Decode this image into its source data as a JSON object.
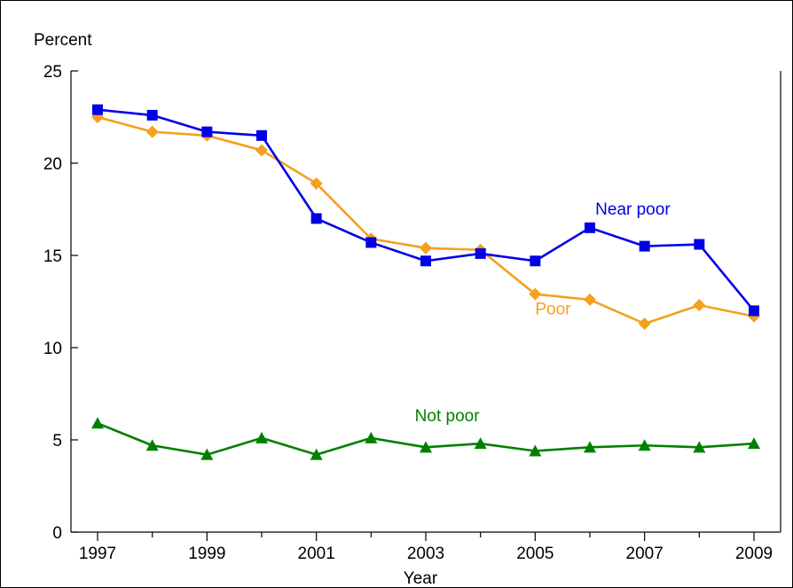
{
  "chart_data": {
    "type": "line",
    "ylabel": "Percent",
    "xlabel": "Year",
    "ylim": [
      0,
      25
    ],
    "xlim": [
      1997,
      2009
    ],
    "yticks": [
      0,
      5,
      10,
      15,
      20,
      25
    ],
    "xticks": [
      1997,
      1999,
      2001,
      2003,
      2005,
      2007,
      2009
    ],
    "x": [
      1997,
      1998,
      1999,
      2000,
      2001,
      2002,
      2003,
      2004,
      2005,
      2006,
      2007,
      2008,
      2009
    ],
    "grid": false,
    "series": [
      {
        "name": "Near poor",
        "color": "#0000e6",
        "marker": "square",
        "values": [
          22.9,
          22.6,
          21.7,
          21.5,
          17.0,
          15.7,
          14.7,
          15.1,
          14.7,
          16.5,
          15.5,
          15.6,
          12.0
        ]
      },
      {
        "name": "Poor",
        "color": "#f5a01e",
        "marker": "diamond",
        "values": [
          22.5,
          21.7,
          21.5,
          20.7,
          18.9,
          15.9,
          15.4,
          15.3,
          12.9,
          12.6,
          11.3,
          12.3,
          11.7
        ]
      },
      {
        "name": "Not poor",
        "color": "#008000",
        "marker": "triangle",
        "values": [
          5.9,
          4.7,
          4.2,
          5.1,
          4.2,
          5.1,
          4.6,
          4.8,
          4.4,
          4.6,
          4.7,
          4.6,
          4.8
        ]
      }
    ]
  }
}
